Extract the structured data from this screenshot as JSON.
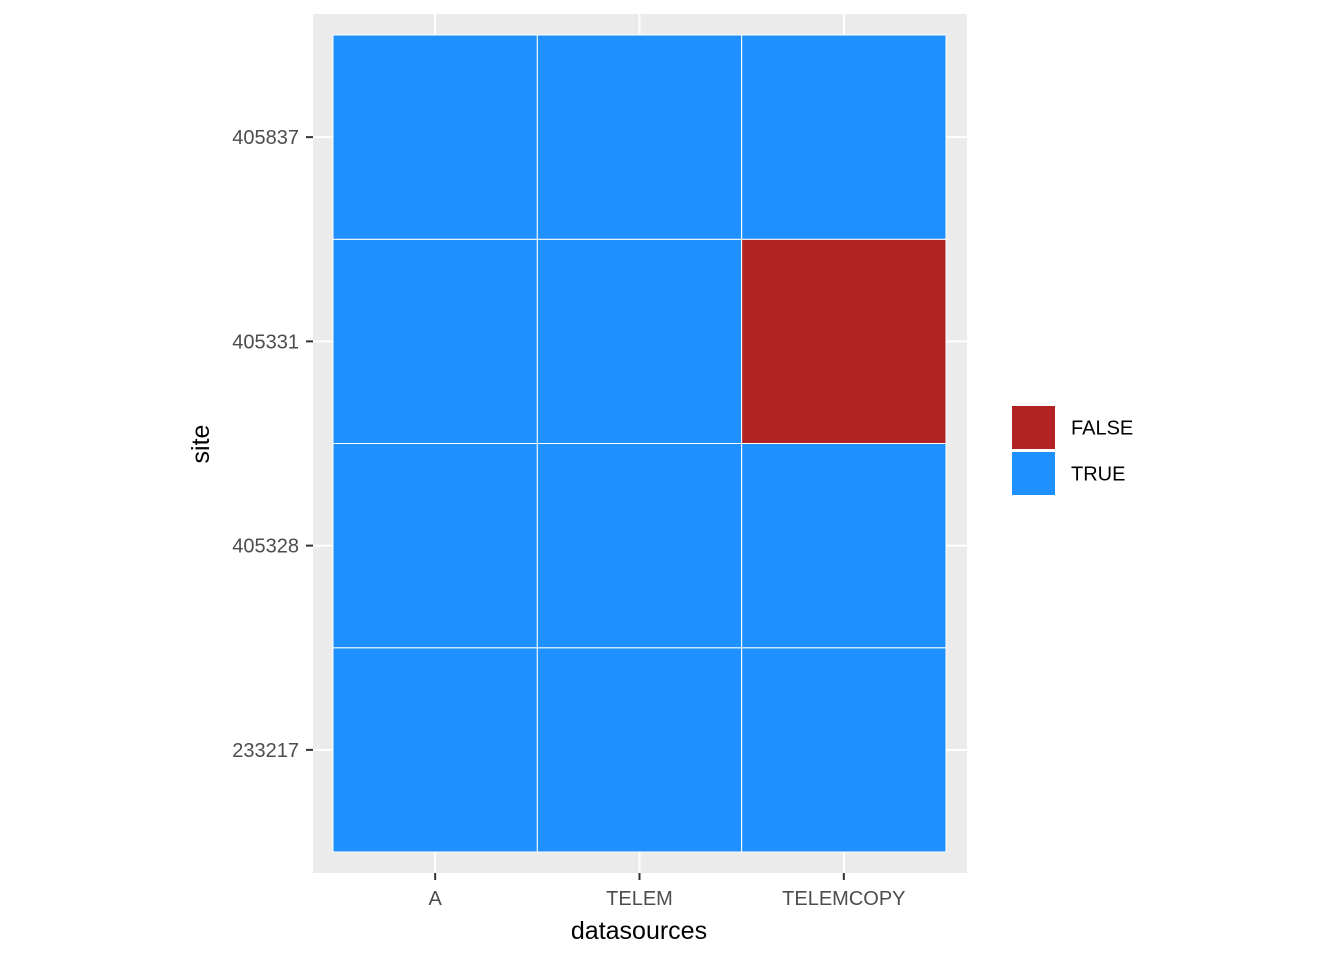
{
  "chart_data": {
    "type": "heatmap",
    "xlabel": "datasources",
    "ylabel": "site",
    "x_categories": [
      "A",
      "TELEM",
      "TELEMCOPY"
    ],
    "y_categories": [
      "233217",
      "405328",
      "405331",
      "405837"
    ],
    "cells": [
      {
        "x": "A",
        "y": "233217",
        "value": "TRUE"
      },
      {
        "x": "TELEM",
        "y": "233217",
        "value": "TRUE"
      },
      {
        "x": "TELEMCOPY",
        "y": "233217",
        "value": "TRUE"
      },
      {
        "x": "A",
        "y": "405328",
        "value": "TRUE"
      },
      {
        "x": "TELEM",
        "y": "405328",
        "value": "TRUE"
      },
      {
        "x": "TELEMCOPY",
        "y": "405328",
        "value": "TRUE"
      },
      {
        "x": "A",
        "y": "405331",
        "value": "TRUE"
      },
      {
        "x": "TELEM",
        "y": "405331",
        "value": "TRUE"
      },
      {
        "x": "TELEMCOPY",
        "y": "405331",
        "value": "FALSE"
      },
      {
        "x": "A",
        "y": "405837",
        "value": "TRUE"
      },
      {
        "x": "TELEM",
        "y": "405837",
        "value": "TRUE"
      },
      {
        "x": "TELEMCOPY",
        "y": "405837",
        "value": "TRUE"
      }
    ],
    "legend": {
      "placement": "right",
      "entries": [
        {
          "label": "FALSE",
          "color": "#b22222"
        },
        {
          "label": "TRUE",
          "color": "#1e90ff"
        }
      ]
    },
    "panel_background": "#ebebeb",
    "grid": true
  }
}
